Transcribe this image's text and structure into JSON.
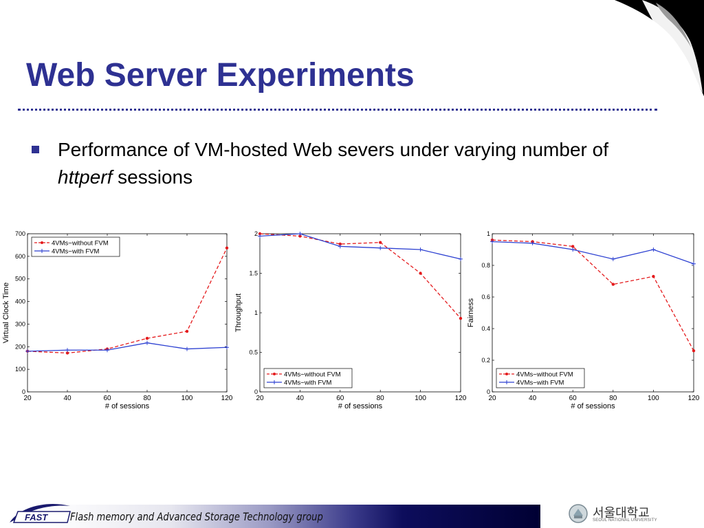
{
  "slide": {
    "title": "Web Server Experiments",
    "bullet_prefix": "Performance of VM-hosted Web severs under varying number of ",
    "bullet_em": "httperf",
    "bullet_suffix": " sessions"
  },
  "footer": {
    "logo_text": "FAST",
    "group_text": "Flash memory and Advanced Storage Technology group",
    "university_name": "서울대학교",
    "university_sub": "SEOUL NATIONAL UNIVERSITY"
  },
  "colors": {
    "title": "#2e3192",
    "series_without_fvm": "#e41a1c",
    "series_with_fvm": "#2b3fd1"
  },
  "chart_data": [
    {
      "type": "line",
      "xlabel": "# of sessions",
      "ylabel": "Virtual Clock Time",
      "x": [
        20,
        40,
        60,
        80,
        100,
        120
      ],
      "xlim": [
        20,
        120
      ],
      "ylim": [
        0,
        700
      ],
      "xticks": [
        20,
        40,
        60,
        80,
        100,
        120
      ],
      "yticks": [
        0,
        100,
        200,
        300,
        400,
        500,
        600,
        700
      ],
      "yticklabels": [
        "0",
        "100",
        "200",
        "300",
        "400",
        "500",
        "600",
        "700"
      ],
      "legend_position": "top-left",
      "series": [
        {
          "name": "4VMs−without FVM",
          "style": "dashed-dot",
          "values": [
            180,
            172,
            190,
            237,
            268,
            637
          ]
        },
        {
          "name": "4VMs−with FVM",
          "style": "solid-plus",
          "values": [
            180,
            185,
            185,
            217,
            190,
            197
          ]
        }
      ]
    },
    {
      "type": "line",
      "xlabel": "# of sessions",
      "ylabel": "Throughput",
      "x": [
        20,
        40,
        60,
        80,
        100,
        120
      ],
      "xlim": [
        20,
        120
      ],
      "ylim": [
        0,
        2
      ],
      "xticks": [
        20,
        40,
        60,
        80,
        100,
        120
      ],
      "yticks": [
        0,
        0.5,
        1,
        1.5,
        2
      ],
      "yticklabels": [
        "0",
        "0.5",
        "1",
        "1.5",
        "2"
      ],
      "legend_position": "bottom-left",
      "series": [
        {
          "name": "4VMs−without FVM",
          "style": "dashed-dot",
          "values": [
            2.0,
            1.97,
            1.87,
            1.89,
            1.5,
            0.93
          ]
        },
        {
          "name": "4VMs−with FVM",
          "style": "solid-plus",
          "values": [
            1.97,
            2.0,
            1.84,
            1.82,
            1.8,
            1.68
          ]
        }
      ]
    },
    {
      "type": "line",
      "xlabel": "# of sessions",
      "ylabel": "Fairness",
      "x": [
        20,
        40,
        60,
        80,
        100,
        120
      ],
      "xlim": [
        20,
        120
      ],
      "ylim": [
        0,
        1
      ],
      "xticks": [
        20,
        40,
        60,
        80,
        100,
        120
      ],
      "yticks": [
        0,
        0.2,
        0.4,
        0.6,
        0.8,
        1
      ],
      "yticklabels": [
        "0",
        "0.2",
        "0.4",
        "0.6",
        "0.8",
        "1"
      ],
      "legend_position": "bottom-left",
      "series": [
        {
          "name": "4VMs−without FVM",
          "style": "dashed-dot",
          "values": [
            0.96,
            0.95,
            0.92,
            0.68,
            0.73,
            0.26
          ]
        },
        {
          "name": "4VMs−with FVM",
          "style": "solid-plus",
          "values": [
            0.95,
            0.94,
            0.9,
            0.84,
            0.9,
            0.81
          ]
        }
      ]
    }
  ]
}
